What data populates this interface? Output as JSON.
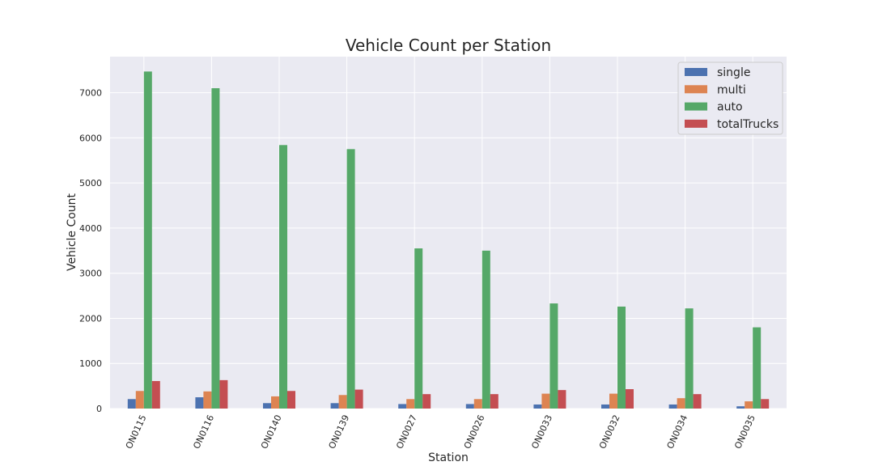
{
  "chart_data": {
    "type": "bar",
    "title": "Vehicle Count per Station",
    "xlabel": "Station",
    "ylabel": "Vehicle Count",
    "ylim": [
      0,
      7800
    ],
    "yticks": [
      0,
      1000,
      2000,
      3000,
      4000,
      5000,
      6000,
      7000
    ],
    "grid": true,
    "legend_position": "top-right",
    "categories": [
      "ON0115",
      "ON0116",
      "ON0140",
      "ON0139",
      "ON0027",
      "ON0026",
      "ON0033",
      "ON0032",
      "ON0034",
      "ON0035"
    ],
    "series": [
      {
        "name": "single",
        "color": "#4c72b0",
        "values": [
          210,
          250,
          120,
          120,
          100,
          100,
          90,
          90,
          90,
          50
        ]
      },
      {
        "name": "multi",
        "color": "#dd8452",
        "values": [
          390,
          380,
          270,
          300,
          210,
          210,
          330,
          330,
          230,
          160
        ]
      },
      {
        "name": "auto",
        "color": "#55a868",
        "values": [
          7470,
          7100,
          5840,
          5750,
          3550,
          3500,
          2330,
          2260,
          2220,
          1800
        ]
      },
      {
        "name": "totalTrucks",
        "color": "#c44e52",
        "values": [
          610,
          630,
          390,
          420,
          320,
          320,
          410,
          430,
          320,
          210
        ]
      }
    ]
  }
}
